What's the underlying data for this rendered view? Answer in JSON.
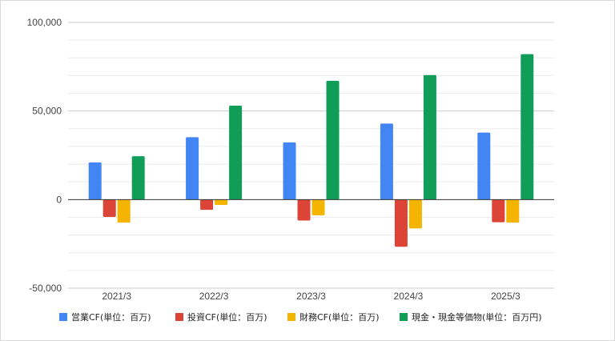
{
  "chart_data": {
    "type": "bar",
    "categories": [
      "2021/3",
      "2022/3",
      "2023/3",
      "2024/3",
      "2025/3"
    ],
    "series": [
      {
        "name": "営業CF(単位：百万)",
        "color": "#4285f4",
        "values": [
          21000,
          35200,
          32300,
          42900,
          37800
        ]
      },
      {
        "name": "投資CF(単位：百万)",
        "color": "#db4437",
        "values": [
          -9800,
          -5800,
          -11800,
          -26600,
          -12800
        ]
      },
      {
        "name": "財務CF(単位：百万)",
        "color": "#f4b400",
        "values": [
          -13000,
          -3000,
          -8900,
          -16300,
          -13000
        ]
      },
      {
        "name": "現金・現金等価物(単位：百万円)",
        "color": "#0f9d58",
        "values": [
          24500,
          53000,
          67000,
          70300,
          82100
        ]
      }
    ],
    "yticks": [
      "100,000",
      "50,000",
      "0",
      "-50,000"
    ],
    "ylim": [
      -50000,
      100000
    ],
    "grid": true,
    "legend_position": "bottom"
  }
}
